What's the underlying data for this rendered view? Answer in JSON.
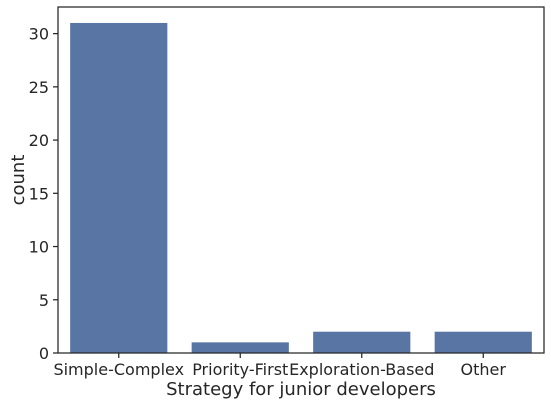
{
  "chart_data": {
    "type": "bar",
    "title": "",
    "xlabel": "Strategy for junior developers",
    "ylabel": "count",
    "categories": [
      "Simple-Complex",
      "Priority-First",
      "Exploration-Based",
      "Other"
    ],
    "values": [
      31,
      1,
      2,
      2
    ],
    "ylim": [
      0,
      32.5
    ],
    "yticks": [
      0,
      5,
      10,
      15,
      20,
      25,
      30
    ],
    "ytick_labels": [
      "0",
      "5",
      "10",
      "15",
      "20",
      "25",
      "30"
    ],
    "bar_color": "#5975a4",
    "grid": false,
    "legend": "none"
  }
}
